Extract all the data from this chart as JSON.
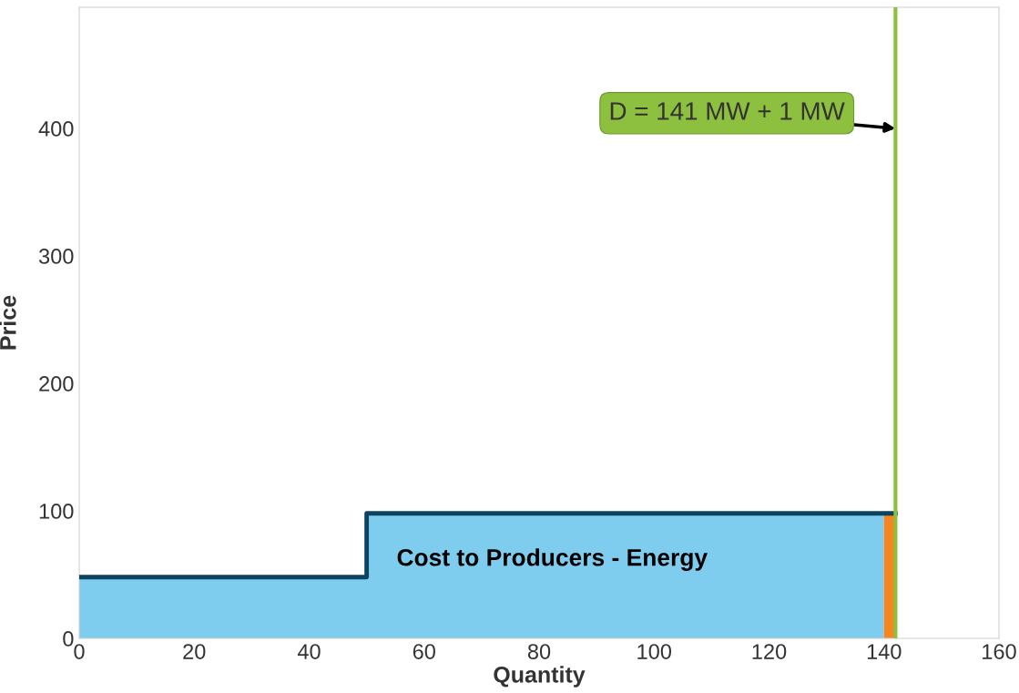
{
  "chart_data": {
    "type": "step",
    "xlabel": "Quantity",
    "ylabel": "Price",
    "series": [
      {
        "type": "area",
        "color": "#7fcdee",
        "x": [
          0,
          50,
          50,
          140
        ],
        "values": [
          48,
          48,
          98,
          98
        ]
      },
      {
        "type": "area",
        "color": "#f5861f",
        "x": [
          140,
          142
        ],
        "values": [
          98,
          98
        ]
      },
      {
        "color": "#0b4361",
        "x": [
          0,
          50,
          142
        ],
        "values": [
          48,
          98,
          98
        ]
      }
    ],
    "ref_lines": [
      {
        "axis": "x",
        "value": 142,
        "color": "#8dc03f"
      }
    ],
    "annotations": [
      {
        "text": "D = 141 MW + 1 MW",
        "x": 142,
        "y": 400
      },
      "Cost to Producers - Energy"
    ],
    "xlim": [
      0,
      160
    ],
    "ylim": [
      0,
      495
    ],
    "xticks": [
      0,
      20,
      40,
      60,
      80,
      100,
      120,
      140,
      160
    ],
    "yticks": [
      0,
      100,
      200,
      300,
      400
    ],
    "grid": false
  }
}
